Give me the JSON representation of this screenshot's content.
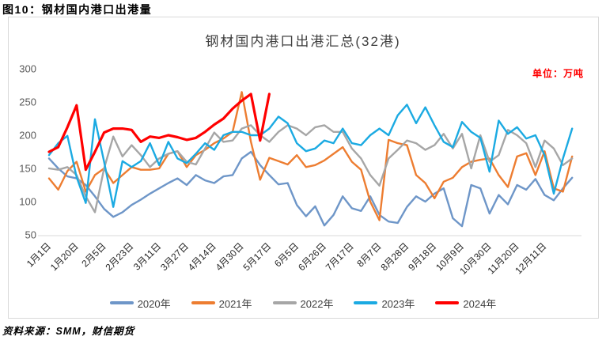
{
  "figure": {
    "caption": "图10：钢材国内港口出港量"
  },
  "source": {
    "label": "资料来源：SMM，财信期货"
  },
  "chart_data": {
    "type": "line",
    "title": "钢材国内港口出港汇总(32港)",
    "unit_label": "单位：万吨",
    "ylabel": "",
    "xlabel": "",
    "ylim": [
      50,
      300
    ],
    "yticks": [
      300,
      250,
      200,
      150,
      100,
      50
    ],
    "grid": false,
    "legend_position": "bottom",
    "x_tick_labels": [
      "1月1日",
      "1月20日",
      "2月5日",
      "2月23日",
      "3月11日",
      "3月27日",
      "4月14日",
      "4月30日",
      "5月17日",
      "6月5日",
      "6月26日",
      "7月17日",
      "8月7日",
      "8月28日",
      "9月18日",
      "10月9日",
      "10月30日",
      "11月20日",
      "12月11日"
    ],
    "x_tick_indices": [
      0,
      3,
      6,
      9,
      12,
      15,
      18,
      21,
      24,
      27,
      30,
      33,
      36,
      39,
      42,
      45,
      48,
      51,
      54
    ],
    "axis_color": "#d9d9d9",
    "ytick_color": "#595959",
    "xtick_color": "#262626",
    "series": [
      {
        "name": "2020年",
        "color": "#6E96C8",
        "values": [
          165,
          150,
          138,
          135,
          125,
          108,
          89,
          77,
          84,
          95,
          103,
          112,
          120,
          128,
          135,
          125,
          140,
          132,
          128,
          138,
          140,
          165,
          175,
          155,
          140,
          126,
          128,
          95,
          78,
          93,
          64,
          80,
          108,
          90,
          86,
          108,
          80,
          70,
          68,
          92,
          108,
          100,
          112,
          120,
          75,
          63,
          125,
          120,
          82,
          110,
          96,
          125,
          118,
          134,
          110,
          102,
          120,
          136
        ]
      },
      {
        "name": "2021年",
        "color": "#ED7D31",
        "values": [
          135,
          118,
          146,
          160,
          115,
          140,
          150,
          128,
          140,
          152,
          148,
          148,
          150,
          172,
          176,
          152,
          170,
          178,
          188,
          195,
          205,
          265,
          190,
          133,
          166,
          161,
          156,
          170,
          152,
          155,
          162,
          172,
          182,
          160,
          148,
          100,
          72,
          193,
          188,
          185,
          140,
          128,
          105,
          130,
          136,
          152,
          160,
          163,
          165,
          140,
          122,
          168,
          173,
          140,
          176,
          120,
          115,
          168
        ]
      },
      {
        "name": "2022年",
        "color": "#A6A6A6",
        "values": [
          150,
          148,
          152,
          140,
          108,
          84,
          150,
          198,
          168,
          185,
          170,
          152,
          165,
          172,
          176,
          160,
          156,
          180,
          204,
          190,
          192,
          210,
          215,
          200,
          190,
          205,
          215,
          210,
          200,
          212,
          215,
          205,
          205,
          180,
          165,
          140,
          124,
          165,
          178,
          192,
          188,
          178,
          185,
          202,
          180,
          202,
          150,
          200,
          160,
          170,
          208,
          200,
          188,
          152,
          192,
          180,
          155,
          165
        ]
      },
      {
        "name": "2023年",
        "color": "#1BAAE2",
        "values": [
          170,
          188,
          199,
          137,
          98,
          224,
          160,
          92,
          161,
          152,
          161,
          188,
          155,
          190,
          165,
          158,
          172,
          188,
          178,
          200,
          205,
          205,
          200,
          200,
          210,
          228,
          218,
          188,
          176,
          180,
          192,
          188,
          210,
          188,
          185,
          200,
          210,
          200,
          230,
          246,
          218,
          242,
          215,
          190,
          182,
          220,
          205,
          196,
          145,
          222,
          202,
          212,
          195,
          200,
          170,
          112,
          165,
          210
        ]
      },
      {
        "name": "2024年",
        "color": "#FF0000",
        "values": [
          175,
          182,
          212,
          245,
          148,
          175,
          204,
          210,
          210,
          208,
          190,
          198,
          196,
          200,
          197,
          193,
          196,
          205,
          216,
          225,
          240,
          252,
          262,
          192,
          262
        ]
      }
    ]
  }
}
